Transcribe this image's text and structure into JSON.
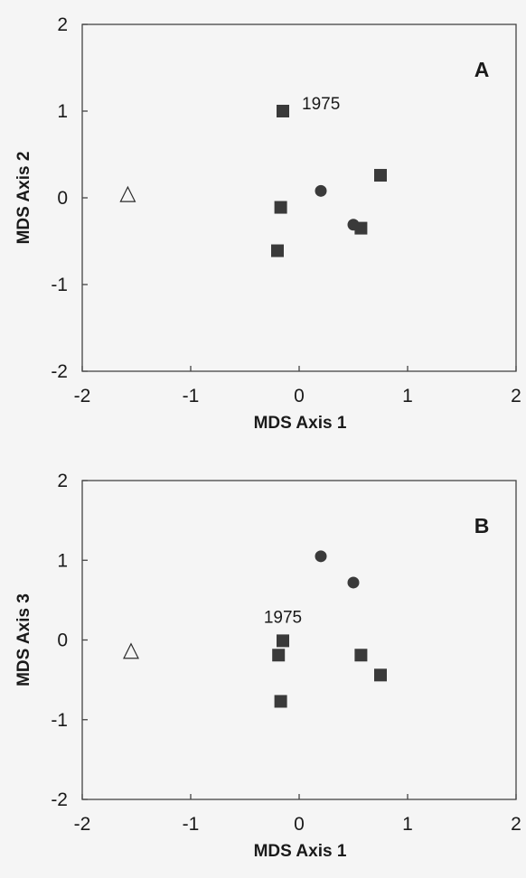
{
  "chart_data": [
    {
      "type": "scatter",
      "panel_label": "A",
      "xlabel": "MDS Axis 1",
      "ylabel": "MDS Axis 2",
      "xlim": [
        -2,
        2
      ],
      "ylim": [
        -2,
        2
      ],
      "xticks": [
        "-2",
        "-1",
        "0",
        "1",
        "2"
      ],
      "yticks": [
        "-2",
        "-1",
        "0",
        "1",
        "2"
      ],
      "grid": false,
      "points": [
        {
          "x": -1.58,
          "y": 0.03,
          "marker": "triangle"
        },
        {
          "x": -0.15,
          "y": 1.0,
          "marker": "square",
          "label": "1975"
        },
        {
          "x": -0.17,
          "y": -0.11,
          "marker": "square"
        },
        {
          "x": -0.2,
          "y": -0.61,
          "marker": "square"
        },
        {
          "x": 0.57,
          "y": -0.35,
          "marker": "square"
        },
        {
          "x": 0.75,
          "y": 0.26,
          "marker": "square"
        },
        {
          "x": 0.2,
          "y": 0.08,
          "marker": "circle"
        },
        {
          "x": 0.5,
          "y": -0.31,
          "marker": "circle"
        }
      ]
    },
    {
      "type": "scatter",
      "panel_label": "B",
      "xlabel": "MDS Axis 1",
      "ylabel": "MDS Axis 3",
      "xlim": [
        -2,
        2
      ],
      "ylim": [
        -2,
        2
      ],
      "xticks": [
        "-2",
        "-1",
        "0",
        "1",
        "2"
      ],
      "yticks": [
        "-2",
        "-1",
        "0",
        "1",
        "2"
      ],
      "grid": false,
      "points": [
        {
          "x": -1.55,
          "y": -0.15,
          "marker": "triangle"
        },
        {
          "x": -0.15,
          "y": -0.01,
          "marker": "square",
          "label": "1975"
        },
        {
          "x": -0.19,
          "y": -0.19,
          "marker": "square"
        },
        {
          "x": -0.17,
          "y": -0.77,
          "marker": "square"
        },
        {
          "x": 0.57,
          "y": -0.19,
          "marker": "square"
        },
        {
          "x": 0.75,
          "y": -0.44,
          "marker": "square"
        },
        {
          "x": 0.2,
          "y": 1.05,
          "marker": "circle"
        },
        {
          "x": 0.5,
          "y": 0.72,
          "marker": "circle"
        }
      ]
    }
  ]
}
